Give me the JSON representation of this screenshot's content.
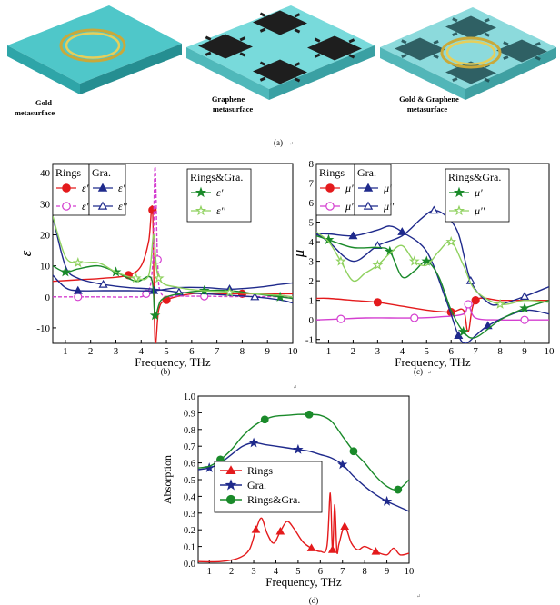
{
  "figure": {
    "metasurfaces": [
      {
        "label_line1": "Gold",
        "label_line2": "metasurface"
      },
      {
        "label_line1": "Graphene",
        "label_line2": "metasurface"
      },
      {
        "label_line1": "Gold & Graphene",
        "label_line2": "metasurface"
      }
    ],
    "captions": {
      "a": "(a)",
      "b": "(b)",
      "c": "(c)",
      "d": "(d)"
    },
    "marks": {
      "a": "↵",
      "b": "↵",
      "c": "↵",
      "d": "↵",
      "mid": "↵"
    }
  },
  "chart_data": [
    {
      "id": "b",
      "type": "line",
      "ylabel": "ε",
      "xlabel": "Frequency, THz",
      "xlim": [
        0.5,
        10
      ],
      "ylim": [
        -15,
        43
      ],
      "xticks": [
        1,
        2,
        3,
        4,
        5,
        6,
        7,
        8,
        9,
        10
      ],
      "yticks": [
        -10,
        0,
        10,
        20,
        30,
        40
      ],
      "legend_groups": [
        {
          "title": "Rings",
          "entries": [
            "ε'",
            "ε''"
          ]
        },
        {
          "title": "Gra.",
          "entries": [
            "ε'",
            "ε''"
          ]
        },
        {
          "title": "Rings&Gra.",
          "entries": [
            "ε'",
            "ε''"
          ]
        }
      ],
      "series": [
        {
          "name": "Rings ε'",
          "color": "#e41a1c",
          "style": "solid",
          "marker": "circle-filled",
          "x": [
            0.5,
            1.5,
            2.5,
            3.5,
            4.0,
            4.3,
            4.45,
            4.55,
            4.7,
            5.0,
            6.0,
            7.0,
            8.0,
            9.0,
            10.0
          ],
          "y": [
            5,
            5.5,
            6,
            7,
            10,
            18,
            28,
            -14,
            -4,
            -1,
            1,
            1,
            1,
            1,
            1
          ]
        },
        {
          "name": "Rings ε''",
          "color": "#d43fd0",
          "style": "dashed",
          "marker": "circle-open",
          "x": [
            0.5,
            1.5,
            2.5,
            3.5,
            4.2,
            4.45,
            4.55,
            4.65,
            4.8,
            5.5,
            6.5,
            7.5,
            8.5,
            10.0
          ],
          "y": [
            0,
            0,
            0,
            0,
            1,
            10,
            42,
            12,
            1,
            0.3,
            0.2,
            0.1,
            0.1,
            0
          ]
        },
        {
          "name": "Gra. ε'",
          "color": "#1f2a8c",
          "style": "solid",
          "marker": "triangle-filled",
          "x": [
            0.5,
            1.0,
            1.5,
            2.5,
            3.5,
            4.5,
            5.5,
            6.5,
            7.5,
            8.5,
            9.5,
            10.0
          ],
          "y": [
            7,
            3,
            2,
            2,
            2,
            2,
            3,
            3,
            2.5,
            3,
            4,
            4.5
          ]
        },
        {
          "name": "Gra. ε''",
          "color": "#1f2a8c",
          "style": "solid",
          "marker": "triangle-open",
          "x": [
            0.5,
            1.0,
            1.5,
            2.5,
            3.5,
            4.5,
            5.5,
            6.5,
            7.5,
            8.5,
            9.5,
            10.0
          ],
          "y": [
            26,
            10,
            6,
            4,
            3,
            2.5,
            1.5,
            1,
            0.5,
            0,
            -1,
            -2
          ]
        },
        {
          "name": "Rings&Gra. ε'",
          "color": "#1a8a2a",
          "style": "solid",
          "marker": "star-filled",
          "x": [
            0.5,
            1.0,
            1.5,
            2.3,
            3.0,
            3.8,
            4.4,
            4.55,
            4.8,
            5.5,
            6.5,
            7.5,
            8.5,
            9.5,
            10.0
          ],
          "y": [
            10,
            8,
            9,
            10,
            8,
            5,
            6,
            -6,
            -1,
            1,
            2,
            2,
            1,
            0,
            -0.5
          ]
        },
        {
          "name": "Rings&Gra. ε''",
          "color": "#8fd15f",
          "style": "solid",
          "marker": "star-open",
          "x": [
            0.5,
            1.0,
            1.5,
            2.3,
            3.0,
            3.8,
            4.3,
            4.5,
            4.7,
            5.5,
            6.5,
            7.5,
            8.5,
            9.5,
            10.0
          ],
          "y": [
            26,
            13,
            11,
            11,
            8,
            6,
            7,
            20,
            6,
            3,
            2,
            1.5,
            1,
            0.5,
            0
          ]
        }
      ]
    },
    {
      "id": "c",
      "type": "line",
      "ylabel": "μ",
      "xlabel": "Frequency, THz",
      "xlim": [
        0.5,
        10
      ],
      "ylim": [
        -1.2,
        8
      ],
      "xticks": [
        1,
        2,
        3,
        4,
        5,
        6,
        7,
        8,
        9,
        10
      ],
      "yticks": [
        -1,
        0,
        1,
        2,
        3,
        4,
        5,
        6,
        7,
        8
      ],
      "legend_groups": [
        {
          "title": "Rings",
          "entries": [
            "μ'",
            "μ''"
          ]
        },
        {
          "title": "Gra.",
          "entries": [
            "μ'",
            "μ''"
          ]
        },
        {
          "title": "Rings&Gra.",
          "entries": [
            "μ'",
            "μ''"
          ]
        }
      ],
      "series": [
        {
          "name": "Rings μ'",
          "color": "#e41a1c",
          "style": "solid",
          "marker": "circle-filled",
          "x": [
            0.5,
            1.0,
            2.0,
            3.0,
            4.0,
            5.0,
            6.0,
            6.5,
            6.7,
            7.0,
            8.0,
            9.0,
            10.0
          ],
          "y": [
            1.1,
            1.1,
            1.0,
            0.9,
            0.7,
            0.5,
            0.4,
            0.5,
            -0.6,
            1.0,
            1.0,
            1.0,
            1.0
          ]
        },
        {
          "name": "Rings μ''",
          "color": "#d43fd0",
          "style": "solid",
          "marker": "circle-open",
          "x": [
            0.5,
            1.5,
            2.5,
            3.5,
            4.5,
            5.5,
            6.5,
            6.7,
            7.0,
            8.0,
            9.0,
            10.0
          ],
          "y": [
            0,
            0.05,
            0.1,
            0.1,
            0.1,
            0.15,
            0.3,
            0.8,
            0.1,
            0,
            0,
            0
          ]
        },
        {
          "name": "Gra. μ'",
          "color": "#1f2a8c",
          "style": "solid",
          "marker": "triangle-filled",
          "x": [
            0.5,
            1.0,
            2.0,
            3.0,
            3.5,
            4.0,
            5.0,
            5.8,
            6.3,
            6.6,
            7.0,
            7.5,
            8.5,
            9.2,
            10.0
          ],
          "y": [
            4.4,
            4.4,
            4.3,
            4.6,
            4.8,
            4.5,
            3.5,
            1.0,
            -0.8,
            -1.2,
            -0.8,
            -0.3,
            0.3,
            0.5,
            0.3
          ]
        },
        {
          "name": "Gra. μ''",
          "color": "#1f2a8c",
          "style": "solid",
          "marker": "triangle-open",
          "x": [
            0.5,
            1.0,
            2.0,
            3.0,
            4.0,
            4.8,
            5.3,
            5.8,
            6.3,
            6.8,
            7.5,
            8.0,
            9.0,
            10.0
          ],
          "y": [
            4.4,
            4.0,
            3.0,
            3.8,
            4.3,
            5.2,
            5.6,
            5.3,
            4.4,
            2.0,
            0.9,
            0.8,
            1.2,
            1.7
          ]
        },
        {
          "name": "Rings&Gra. μ'",
          "color": "#1a8a2a",
          "style": "solid",
          "marker": "star-filled",
          "x": [
            0.5,
            1.0,
            2.0,
            3.0,
            3.5,
            4.0,
            4.5,
            5.0,
            5.5,
            6.0,
            6.5,
            7.0,
            8.0,
            9.0,
            10.0
          ],
          "y": [
            4.3,
            4.1,
            3.7,
            3.7,
            3.5,
            2.2,
            2.5,
            3.0,
            2.2,
            0.5,
            -0.6,
            -0.9,
            0.0,
            0.6,
            1.0
          ]
        },
        {
          "name": "Rings&Gra. μ''",
          "color": "#8fd15f",
          "style": "solid",
          "marker": "star-open",
          "x": [
            0.5,
            1.0,
            1.5,
            2.0,
            2.5,
            3.0,
            3.5,
            4.0,
            4.5,
            5.0,
            5.5,
            6.0,
            6.5,
            7.0,
            8.0,
            9.0,
            10.0
          ],
          "y": [
            4.5,
            4.0,
            3.0,
            2.0,
            2.4,
            2.8,
            3.4,
            3.8,
            3.0,
            2.8,
            3.5,
            4.0,
            2.8,
            1.5,
            0.8,
            1.0,
            0.9
          ]
        }
      ]
    },
    {
      "id": "d",
      "type": "line",
      "ylabel": "Absorption",
      "xlabel": "Frequency, THz",
      "xlim": [
        0.5,
        10
      ],
      "ylim": [
        0,
        1.0
      ],
      "xticks": [
        1,
        2,
        3,
        4,
        5,
        6,
        7,
        8,
        9,
        10
      ],
      "yticks": [
        0.0,
        0.1,
        0.2,
        0.3,
        0.4,
        0.5,
        0.6,
        0.7,
        0.8,
        0.9,
        1.0
      ],
      "legend": [
        "Rings",
        "Gra.",
        "Rings&Gra."
      ],
      "series": [
        {
          "name": "Rings",
          "color": "#e41a1c",
          "marker": "triangle-filled",
          "x": [
            0.5,
            1.5,
            2.3,
            2.8,
            3.1,
            3.35,
            3.6,
            3.9,
            4.2,
            4.5,
            4.8,
            5.2,
            5.6,
            6.0,
            6.3,
            6.45,
            6.55,
            6.65,
            6.75,
            6.85,
            7.1,
            7.4,
            7.7,
            8.0,
            8.5,
            9.0,
            9.3,
            9.6,
            10.0
          ],
          "y": [
            0.01,
            0.01,
            0.03,
            0.08,
            0.2,
            0.27,
            0.18,
            0.12,
            0.19,
            0.25,
            0.21,
            0.13,
            0.09,
            0.07,
            0.1,
            0.42,
            0.08,
            0.35,
            0.07,
            0.12,
            0.22,
            0.12,
            0.08,
            0.1,
            0.07,
            0.05,
            0.09,
            0.05,
            0.06
          ]
        },
        {
          "name": "Gra.",
          "color": "#1f2a8c",
          "marker": "star-filled",
          "x": [
            0.5,
            1.0,
            1.5,
            2.0,
            2.5,
            3.0,
            3.5,
            4.0,
            4.5,
            5.0,
            5.5,
            6.0,
            6.5,
            7.0,
            7.5,
            8.0,
            8.5,
            9.0,
            9.5,
            10.0
          ],
          "y": [
            0.56,
            0.57,
            0.6,
            0.65,
            0.7,
            0.72,
            0.71,
            0.7,
            0.69,
            0.68,
            0.67,
            0.65,
            0.63,
            0.59,
            0.52,
            0.46,
            0.41,
            0.37,
            0.34,
            0.31
          ]
        },
        {
          "name": "Rings&Gra.",
          "color": "#1a8a2a",
          "marker": "circle-filled",
          "x": [
            0.5,
            1.0,
            1.5,
            2.0,
            2.5,
            3.0,
            3.5,
            4.0,
            4.5,
            5.0,
            5.5,
            6.0,
            6.5,
            7.0,
            7.5,
            8.0,
            8.5,
            9.0,
            9.5,
            10.0
          ],
          "y": [
            0.57,
            0.58,
            0.62,
            0.68,
            0.76,
            0.82,
            0.86,
            0.88,
            0.885,
            0.89,
            0.89,
            0.885,
            0.85,
            0.76,
            0.67,
            0.6,
            0.52,
            0.46,
            0.44,
            0.5
          ]
        }
      ]
    }
  ]
}
